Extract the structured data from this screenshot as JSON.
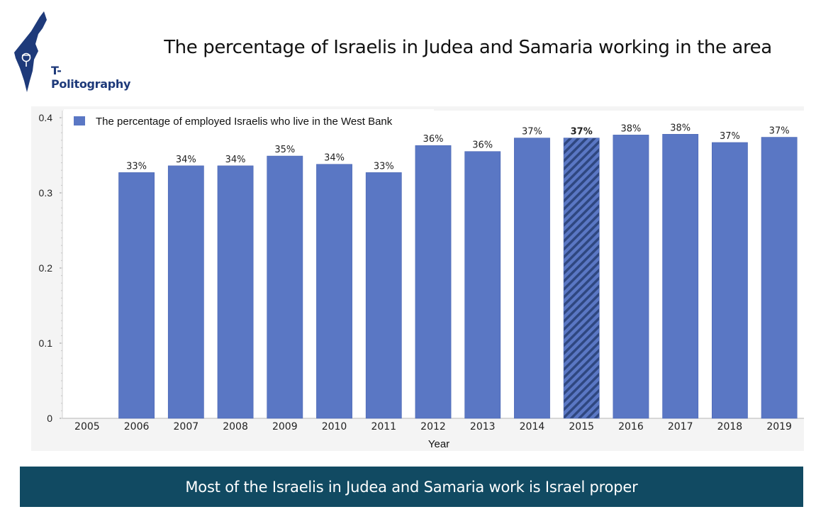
{
  "header": {
    "brand_name": "T-Politography",
    "title": "The percentage of Israelis in Judea and Samaria working in the area"
  },
  "footer": {
    "text": "Most of the Israelis in Judea and Samaria work is Israel proper"
  },
  "colors": {
    "bar": "#5a77c4",
    "bar_stroke": "#4a66b3",
    "highlight_hatch": "#2f4780",
    "brand": "#1e3a7a",
    "footer_bg": "#114a62",
    "panel_bg": "#f4f4f4",
    "plot_bg": "#ffffff"
  },
  "chart_data": {
    "type": "bar",
    "title": "",
    "xlabel": "Year",
    "ylabel": "",
    "ylim": [
      0,
      0.4
    ],
    "yticks": [
      "0",
      "0.1",
      "0.2",
      "0.3",
      "0.4"
    ],
    "grid": false,
    "legend_position": "top-left",
    "categories": [
      "2005",
      "2006",
      "2007",
      "2008",
      "2009",
      "2010",
      "2011",
      "2012",
      "2013",
      "2014",
      "2015",
      "2016",
      "2017",
      "2018",
      "2019"
    ],
    "series": [
      {
        "name": "The percentage of employed Israelis who live in the West Bank",
        "values": [
          null,
          0.327,
          0.336,
          0.336,
          0.349,
          0.338,
          0.327,
          0.363,
          0.355,
          0.373,
          0.373,
          0.377,
          0.378,
          0.367,
          0.374
        ],
        "labels": [
          "",
          "33%",
          "34%",
          "34%",
          "35%",
          "34%",
          "33%",
          "36%",
          "36%",
          "37%",
          "37%",
          "38%",
          "38%",
          "37%",
          "37%"
        ]
      }
    ],
    "highlighted_category": "2015"
  }
}
